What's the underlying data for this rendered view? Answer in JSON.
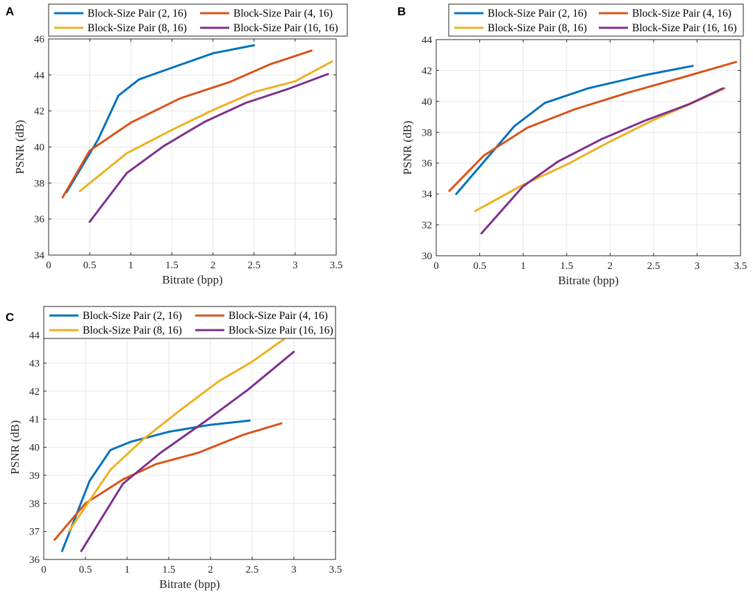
{
  "series_colors": {
    "s2": "#0072BD",
    "s4": "#D95319",
    "s8": "#EDB120",
    "s16": "#7E2F8E"
  },
  "chart_data": [
    {
      "type": "line",
      "panel": "A",
      "title": "",
      "xlabel": "Bitrate (bpp)",
      "ylabel": "PSNR (dB)",
      "xlim": [
        0,
        3.5
      ],
      "ylim": [
        34,
        46
      ],
      "xticks": [
        0,
        0.5,
        1,
        1.5,
        2,
        2.5,
        3,
        3.5
      ],
      "xtick_labels": [
        "0",
        "0.5",
        "1",
        "1.5",
        "2",
        "2.5",
        "3",
        "3.5"
      ],
      "yticks": [
        34,
        36,
        38,
        40,
        42,
        44,
        46
      ],
      "ytick_labels": [
        "34",
        "36",
        "38",
        "40",
        "42",
        "44",
        "46"
      ],
      "grid": true,
      "legend_placement": "top",
      "series": [
        {
          "key": "s2",
          "name": "Block-Size Pair (2, 16)",
          "x": [
            0.22,
            0.6,
            0.85,
            1.1,
            1.5,
            2.0,
            2.5
          ],
          "y": [
            37.5,
            40.4,
            42.85,
            43.75,
            44.4,
            45.2,
            45.65
          ]
        },
        {
          "key": "s4",
          "name": "Block-Size Pair (4, 16)",
          "x": [
            0.17,
            0.5,
            1.0,
            1.6,
            2.2,
            2.7,
            3.2
          ],
          "y": [
            37.2,
            39.8,
            41.35,
            42.7,
            43.6,
            44.6,
            45.35
          ]
        },
        {
          "key": "s8",
          "name": "Block-Size Pair (8, 16)",
          "x": [
            0.38,
            0.95,
            1.5,
            2.0,
            2.5,
            3.0,
            3.45
          ],
          "y": [
            37.55,
            39.65,
            40.95,
            42.05,
            43.05,
            43.65,
            44.75
          ]
        },
        {
          "key": "s16",
          "name": "Block-Size Pair (16, 16)",
          "x": [
            0.5,
            0.95,
            1.4,
            1.9,
            2.4,
            2.9,
            3.4
          ],
          "y": [
            35.85,
            38.55,
            40.05,
            41.4,
            42.45,
            43.2,
            44.05
          ]
        }
      ]
    },
    {
      "type": "line",
      "panel": "B",
      "title": "",
      "xlabel": "Bitrate (bpp)",
      "ylabel": "PSNR (dB)",
      "xlim": [
        0,
        3.5
      ],
      "ylim": [
        30,
        44
      ],
      "xticks": [
        0,
        0.5,
        1,
        1.5,
        2,
        2.5,
        3,
        3.5
      ],
      "xtick_labels": [
        "0",
        "0.5",
        "1",
        "1.5",
        "2",
        "2.5",
        "3",
        "3.5"
      ],
      "yticks": [
        30,
        32,
        34,
        36,
        38,
        40,
        42,
        44
      ],
      "ytick_labels": [
        "30",
        "32",
        "34",
        "36",
        "38",
        "40",
        "42",
        "44"
      ],
      "grid": true,
      "legend_placement": "top",
      "series": [
        {
          "key": "s2",
          "name": "Block-Size Pair (2, 16)",
          "x": [
            0.23,
            0.55,
            0.9,
            1.25,
            1.75,
            2.4,
            2.95
          ],
          "y": [
            34.0,
            36.1,
            38.4,
            39.9,
            40.85,
            41.7,
            42.3
          ]
        },
        {
          "key": "s4",
          "name": "Block-Size Pair (4, 16)",
          "x": [
            0.15,
            0.55,
            1.05,
            1.6,
            2.2,
            2.8,
            3.45
          ],
          "y": [
            34.2,
            36.5,
            38.3,
            39.5,
            40.55,
            41.5,
            42.55
          ]
        },
        {
          "key": "s8",
          "name": "Block-Size Pair (8, 16)",
          "x": [
            0.45,
            1.0,
            1.5,
            2.0,
            2.5,
            2.95,
            3.32
          ],
          "y": [
            32.9,
            34.6,
            35.9,
            37.4,
            38.8,
            39.9,
            40.85
          ]
        },
        {
          "key": "s16",
          "name": "Block-Size Pair (16, 16)",
          "x": [
            0.52,
            1.0,
            1.4,
            1.9,
            2.4,
            2.9,
            3.3
          ],
          "y": [
            31.45,
            34.5,
            36.1,
            37.55,
            38.75,
            39.8,
            40.85
          ]
        }
      ]
    },
    {
      "type": "line",
      "panel": "C",
      "title": "",
      "xlabel": "Bitrate (bpp)",
      "ylabel": "PSNR (dB)",
      "xlim": [
        0,
        3.5
      ],
      "ylim": [
        36,
        44
      ],
      "xticks": [
        0,
        0.5,
        1,
        1.5,
        2,
        2.5,
        3,
        3.5
      ],
      "xtick_labels": [
        "0",
        "0.5",
        "1",
        "1.5",
        "2",
        "2.5",
        "3",
        "3.5"
      ],
      "yticks": [
        36,
        37,
        38,
        39,
        40,
        41,
        42,
        43,
        44
      ],
      "ytick_labels": [
        "36",
        "37",
        "38",
        "39",
        "40",
        "41",
        "42",
        "43",
        "44"
      ],
      "grid": true,
      "legend_placement": "top",
      "series": [
        {
          "key": "s2",
          "name": "Block-Size Pair (2, 16)",
          "x": [
            0.22,
            0.55,
            0.8,
            1.05,
            1.5,
            2.0,
            2.47
          ],
          "y": [
            36.3,
            38.8,
            39.9,
            40.2,
            40.55,
            40.8,
            40.95
          ]
        },
        {
          "key": "s4",
          "name": "Block-Size Pair (4, 16)",
          "x": [
            0.13,
            0.5,
            0.95,
            1.35,
            1.85,
            2.4,
            2.85
          ],
          "y": [
            36.7,
            38.0,
            38.85,
            39.4,
            39.8,
            40.45,
            40.85
          ]
        },
        {
          "key": "s8",
          "name": "Block-Size Pair (8, 16)",
          "x": [
            0.3,
            0.8,
            1.2,
            1.65,
            2.1,
            2.5,
            2.88
          ],
          "y": [
            37.0,
            39.2,
            40.3,
            41.35,
            42.35,
            43.05,
            43.85
          ]
        },
        {
          "key": "s16",
          "name": "Block-Size Pair (16, 16)",
          "x": [
            0.45,
            0.95,
            1.4,
            1.95,
            2.45,
            3.0
          ],
          "y": [
            36.3,
            38.7,
            39.8,
            40.95,
            42.05,
            43.4
          ]
        }
      ]
    }
  ]
}
